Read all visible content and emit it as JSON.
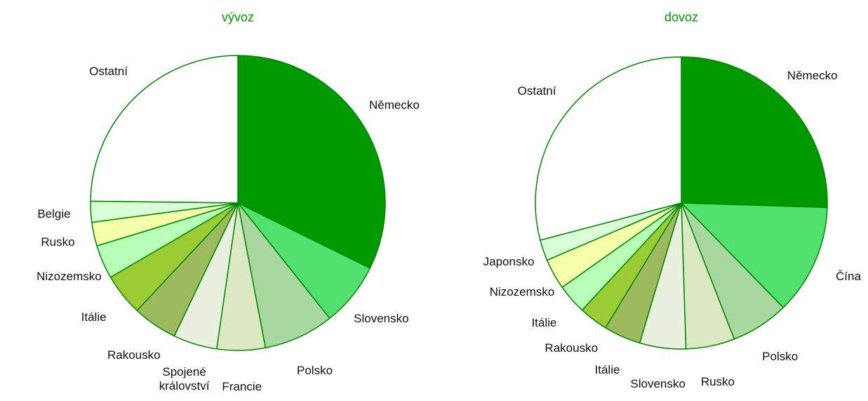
{
  "chart_data": [
    {
      "type": "pie",
      "title": "vývoz",
      "categories": [
        "Německo",
        "Slovensko",
        "Polsko",
        "Francie",
        "Spojené království",
        "Rakousko",
        "Itálie",
        "Nizozemsko",
        "Rusko",
        "Belgie",
        "Ostatní"
      ],
      "values": [
        32.3,
        7.0,
        7.7,
        5.3,
        4.8,
        4.9,
        4.6,
        3.7,
        2.6,
        2.3,
        24.8
      ],
      "colors": [
        "#009900",
        "#52e06e",
        "#a8d8a0",
        "#dce8c4",
        "#eaf0e0",
        "#9dbb5e",
        "#9ccc34",
        "#b8ffb8",
        "#f6ffaa",
        "#d8ffd8",
        "#ffffff"
      ]
    },
    {
      "type": "pie",
      "title": "dovoz",
      "categories": [
        "Německo",
        "Čína",
        "Polsko",
        "Rusko",
        "Slovensko",
        "Itálie",
        "Rakousko",
        "Itálie",
        "Nizozemsko",
        "Japonsko",
        "Ostatní"
      ],
      "values": [
        25.5,
        12.2,
        6.4,
        5.4,
        5.1,
        4.1,
        3.2,
        3.3,
        3.4,
        2.3,
        29.1
      ],
      "colors": [
        "#009900",
        "#52e06e",
        "#a8d8a0",
        "#dce8c4",
        "#eaf0e0",
        "#9dbb5e",
        "#9ccc34",
        "#b8ffb8",
        "#f6ffaa",
        "#d8ffd8",
        "#ffffff"
      ]
    }
  ]
}
